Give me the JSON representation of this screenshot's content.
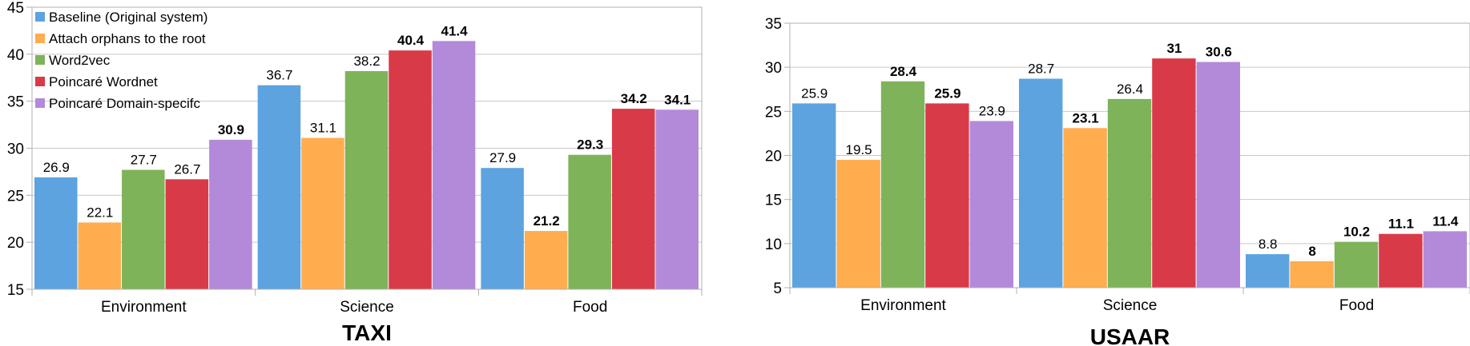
{
  "chart_data": [
    {
      "type": "bar",
      "title": "TAXI",
      "categories": [
        "Environment",
        "Science",
        "Food"
      ],
      "ylim": [
        15,
        45
      ],
      "yticks": [
        "15",
        "20",
        "25",
        "30",
        "35",
        "40",
        "45"
      ],
      "grid": true,
      "legend_position": "top-left",
      "series": [
        {
          "name": "Baseline (Original system)",
          "color": "#5da3df",
          "values": [
            26.9,
            36.7,
            27.9
          ],
          "labels": [
            "26.9",
            "36.7",
            "27.9"
          ],
          "bold": [
            false,
            false,
            false
          ]
        },
        {
          "name": "Attach orphans to the root",
          "color": "#ffad4f",
          "values": [
            22.1,
            31.1,
            21.2
          ],
          "labels": [
            "22.1",
            "31.1",
            "21.2"
          ],
          "bold": [
            false,
            false,
            true
          ]
        },
        {
          "name": "Word2vec",
          "color": "#7eb35a",
          "values": [
            27.7,
            38.2,
            29.3
          ],
          "labels": [
            "27.7",
            "38.2",
            "29.3"
          ],
          "bold": [
            false,
            false,
            true
          ]
        },
        {
          "name": "Poincaré Wordnet",
          "color": "#d93a48",
          "values": [
            26.7,
            40.4,
            34.2
          ],
          "labels": [
            "26.7",
            "40.4",
            "34.2"
          ],
          "bold": [
            false,
            true,
            true
          ]
        },
        {
          "name": "Poincaré Domain-specifc",
          "color": "#b38ad9",
          "values": [
            30.9,
            41.4,
            34.1
          ],
          "labels": [
            "30.9",
            "41.4",
            "34.1"
          ],
          "bold": [
            true,
            true,
            true
          ]
        }
      ]
    },
    {
      "type": "bar",
      "title": "USAAR",
      "categories": [
        "Environment",
        "Science",
        "Food"
      ],
      "ylim": [
        5,
        35
      ],
      "yticks": [
        "5",
        "10",
        "15",
        "20",
        "25",
        "30",
        "35"
      ],
      "grid": true,
      "legend_position": "none",
      "series": [
        {
          "name": "Baseline (Original system)",
          "color": "#5da3df",
          "values": [
            25.9,
            28.7,
            8.8
          ],
          "labels": [
            "25.9",
            "28.7",
            "8.8"
          ],
          "bold": [
            false,
            false,
            false
          ]
        },
        {
          "name": "Attach orphans to the root",
          "color": "#ffad4f",
          "values": [
            19.5,
            23.1,
            8
          ],
          "labels": [
            "19.5",
            "23.1",
            "8"
          ],
          "bold": [
            false,
            true,
            true
          ]
        },
        {
          "name": "Word2vec",
          "color": "#7eb35a",
          "values": [
            28.4,
            26.4,
            10.2
          ],
          "labels": [
            "28.4",
            "26.4",
            "10.2"
          ],
          "bold": [
            true,
            false,
            true
          ]
        },
        {
          "name": "Poincaré Wordnet",
          "color": "#d93a48",
          "values": [
            25.9,
            31,
            11.1
          ],
          "labels": [
            "25.9",
            "31",
            "11.1"
          ],
          "bold": [
            true,
            true,
            true
          ]
        },
        {
          "name": "Poincaré Domain-specifc",
          "color": "#b38ad9",
          "values": [
            23.9,
            30.6,
            11.4
          ],
          "labels": [
            "23.9",
            "30.6",
            "11.4"
          ],
          "bold": [
            false,
            true,
            true
          ]
        }
      ]
    }
  ]
}
